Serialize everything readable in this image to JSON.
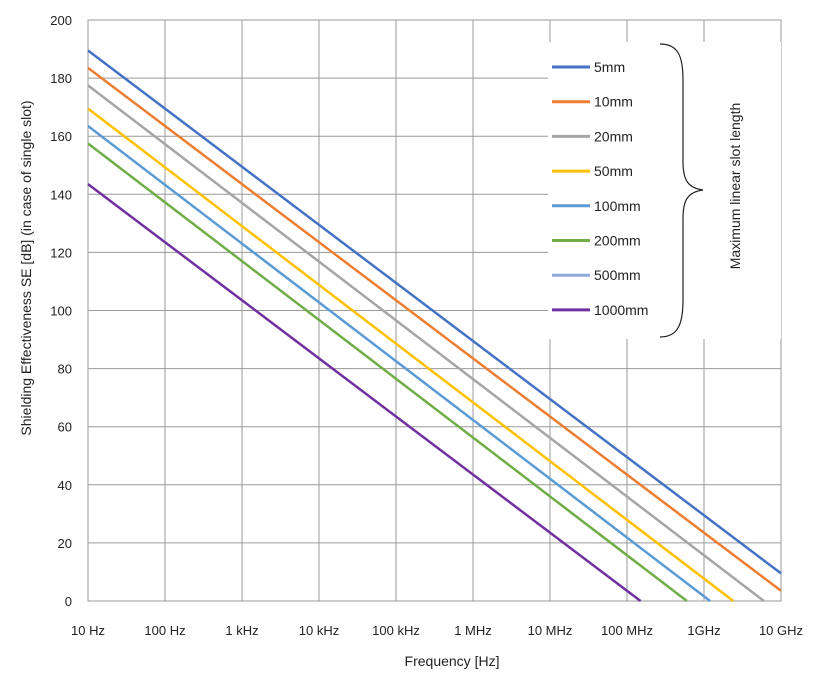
{
  "chart_data": {
    "type": "line",
    "xlabel": "Frequency [Hz]",
    "ylabel": "Shielding Effectiveness SE [dB] (in case of single slot)",
    "x_scale": "log",
    "xlim": [
      10,
      10000000000
    ],
    "ylim": [
      0,
      200
    ],
    "x_ticks": [
      10,
      100,
      1000,
      10000,
      100000,
      1000000,
      10000000,
      100000000,
      1000000000,
      10000000000
    ],
    "x_tick_labels": [
      "10 Hz",
      "100 Hz",
      "1 kHz",
      "10 kHz",
      "100 kHz",
      "1 MHz",
      "10 MHz",
      "100 MHz",
      "1GHz",
      "10 GHz"
    ],
    "y_ticks": [
      0,
      20,
      40,
      60,
      80,
      100,
      120,
      140,
      160,
      180,
      200
    ],
    "y_tick_labels": [
      "0",
      "20",
      "40",
      "60",
      "80",
      "100",
      "120",
      "140",
      "160",
      "180",
      "200"
    ],
    "grid": true,
    "legend_position": "top-right",
    "legend_annotation": "Maximum linear slot length",
    "series": [
      {
        "name": "5mm",
        "color": "#4472c4",
        "x": [
          10,
          10000000000
        ],
        "y": [
          189.5,
          9.5
        ]
      },
      {
        "name": "10mm",
        "color": "#ed7d31",
        "x": [
          10,
          10000000000
        ],
        "y": [
          183.5,
          3.5
        ]
      },
      {
        "name": "20mm",
        "color": "#a5a5a5",
        "x": [
          10,
          6000000000
        ],
        "y": [
          177.5,
          0
        ]
      },
      {
        "name": "50mm",
        "color": "#ffc000",
        "x": [
          10,
          2400000000
        ],
        "y": [
          169.5,
          0
        ]
      },
      {
        "name": "100mm",
        "color": "#5b9bd5",
        "x": [
          10,
          1200000000
        ],
        "y": [
          163.5,
          0
        ]
      },
      {
        "name": "200mm",
        "color": "#70ad47",
        "x": [
          10,
          600000000
        ],
        "y": [
          157.5,
          0
        ]
      },
      {
        "name": "500mm",
        "color": "#8faadc",
        "x": [],
        "y": []
      },
      {
        "name": "1000mm",
        "color": "#7030a0",
        "x": [
          10,
          150000000
        ],
        "y": [
          143.5,
          0
        ]
      }
    ]
  }
}
